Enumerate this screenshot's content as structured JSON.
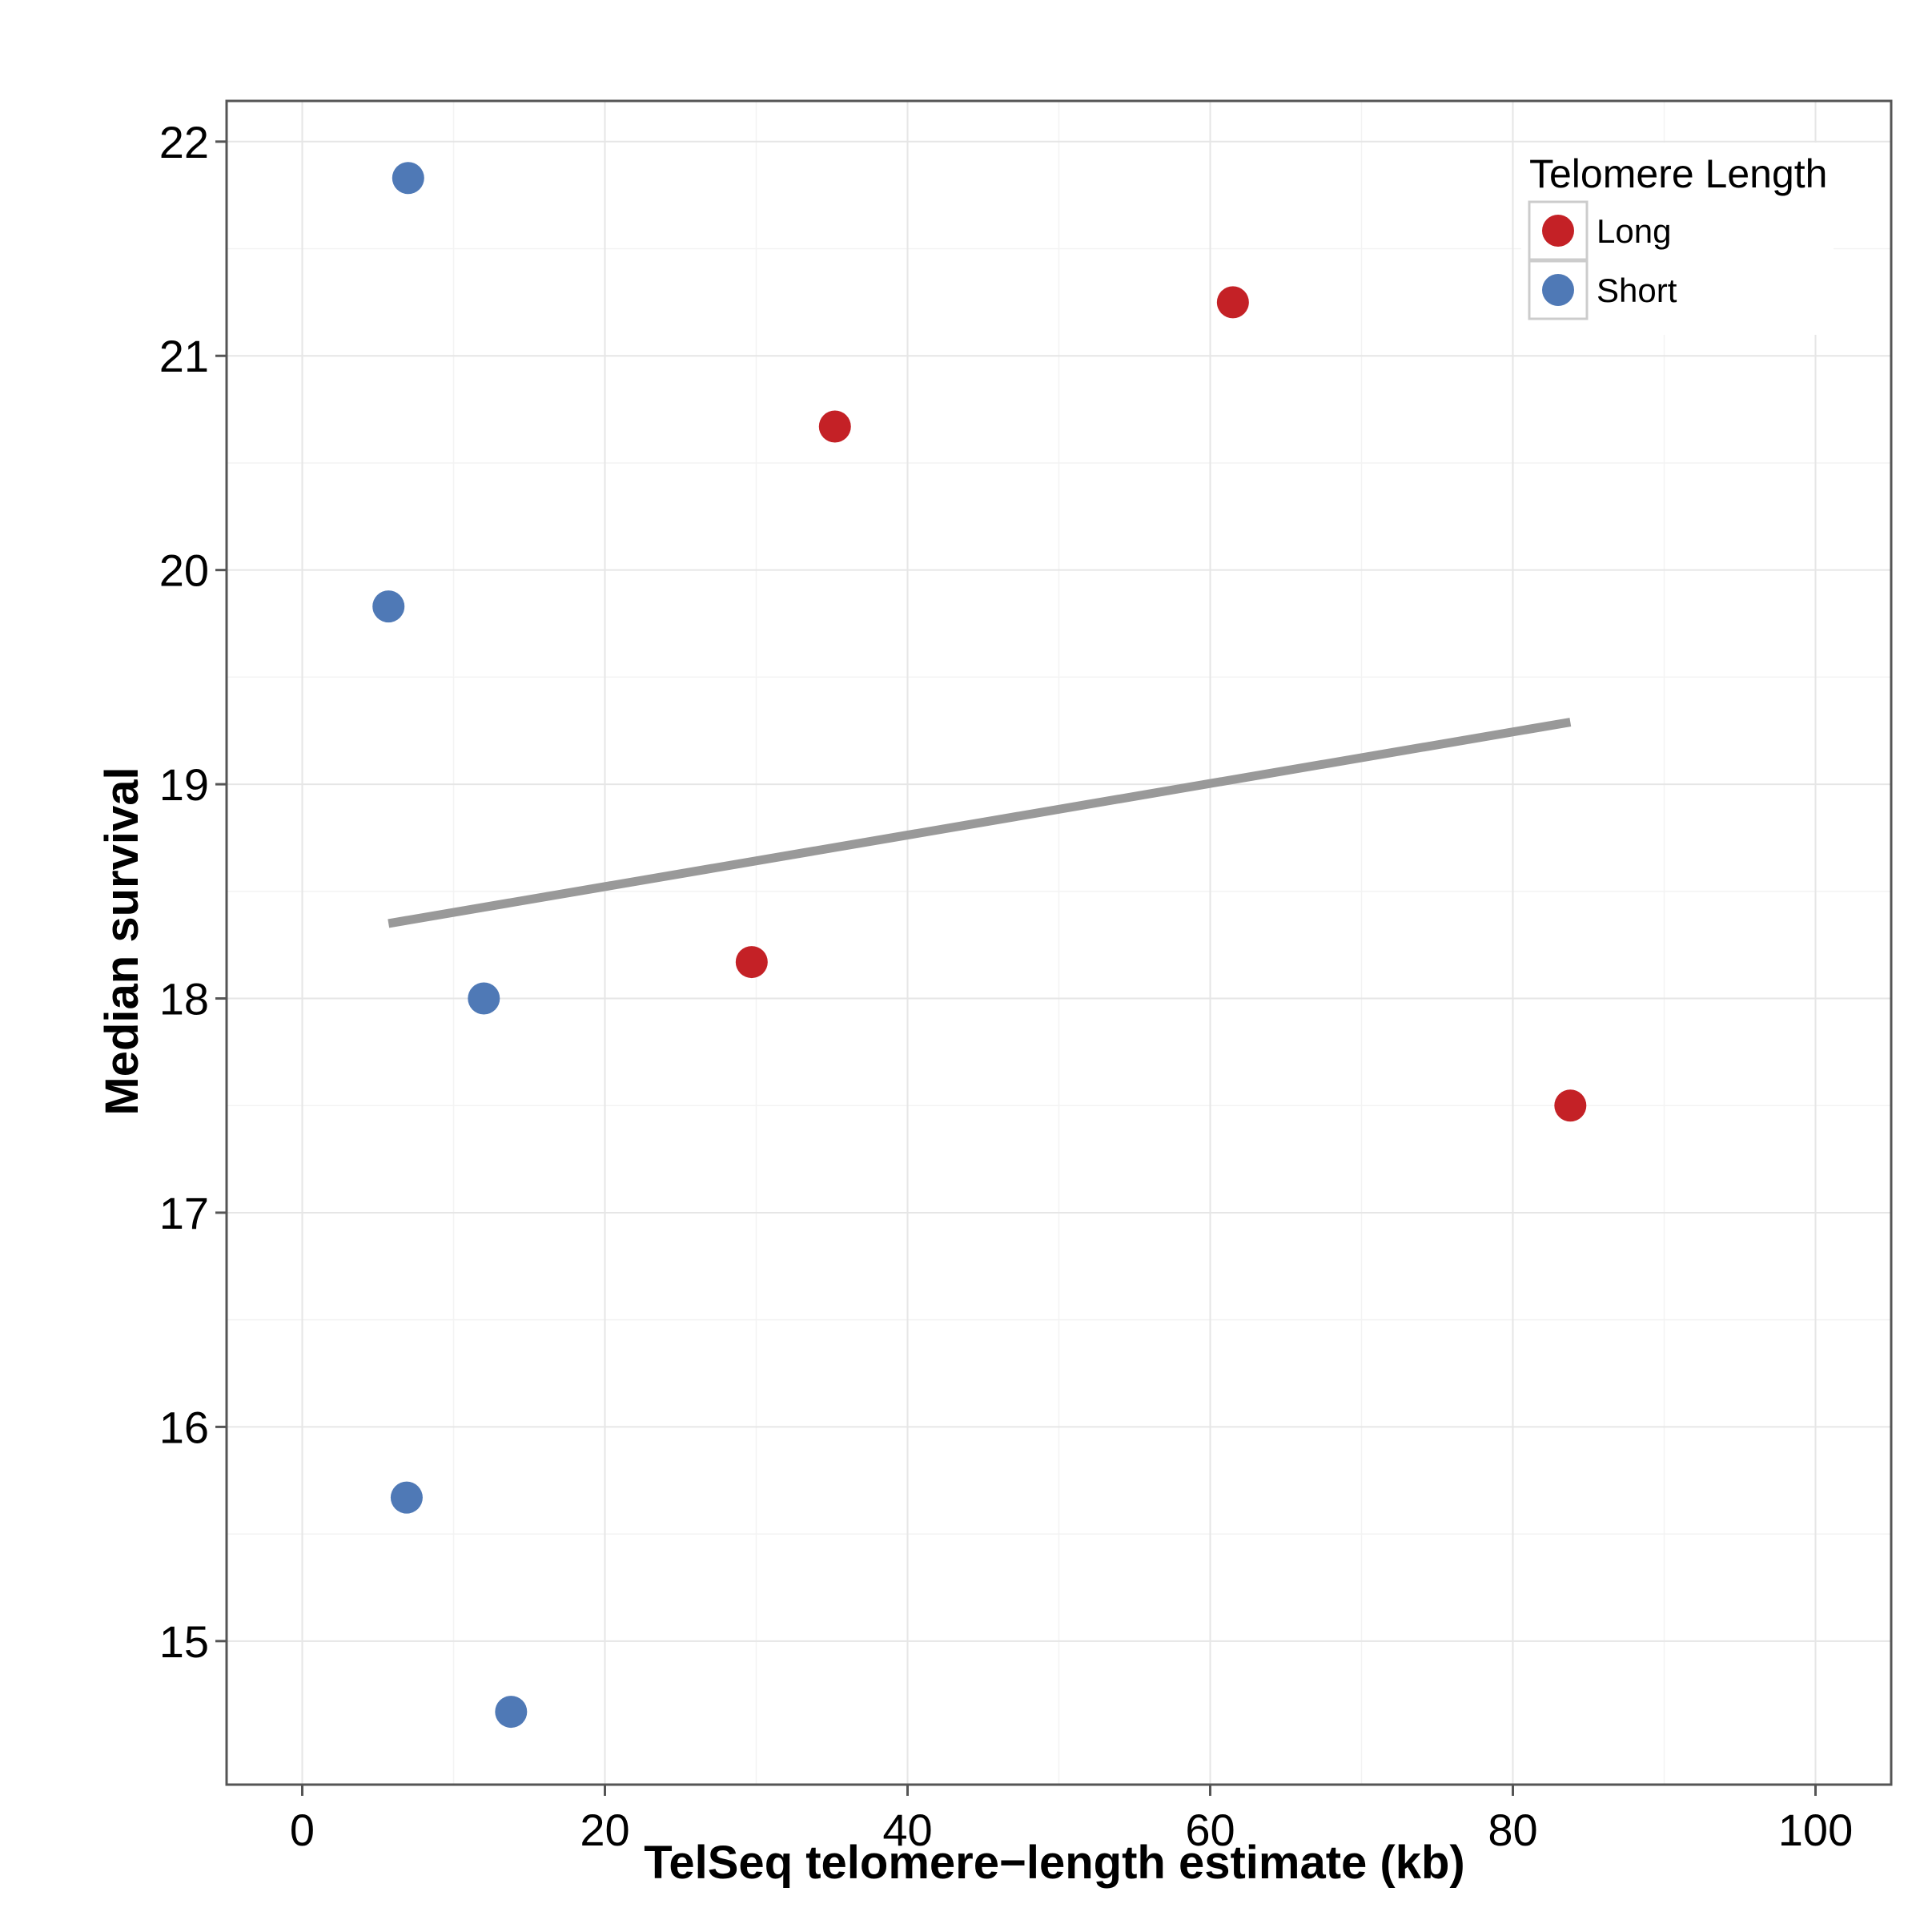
{
  "chart_data": {
    "type": "scatter",
    "title": "",
    "xlabel": "TelSeq telomere−length estimate (kb)",
    "ylabel": "Median survival",
    "xlim": [
      -5,
      105
    ],
    "ylim": [
      14.33,
      22.19
    ],
    "xticks": [
      "0",
      "20",
      "40",
      "60",
      "80",
      "100"
    ],
    "xtick_values": [
      0,
      20,
      40,
      60,
      80,
      100
    ],
    "yticks": [
      "15",
      "16",
      "17",
      "18",
      "19",
      "20",
      "21",
      "22"
    ],
    "ytick_values": [
      15,
      16,
      17,
      18,
      19,
      20,
      21,
      22
    ],
    "grid": true,
    "legend": {
      "title": "Telomere Length",
      "position": "top-right"
    },
    "series": [
      {
        "name": "Long",
        "color": "#c42126",
        "points": [
          {
            "x": 61.5,
            "y": 21.25
          },
          {
            "x": 35.2,
            "y": 20.67
          },
          {
            "x": 29.7,
            "y": 18.17
          },
          {
            "x": 83.8,
            "y": 17.5
          }
        ]
      },
      {
        "name": "Short",
        "color": "#4f79b6",
        "points": [
          {
            "x": 7.0,
            "y": 21.83
          },
          {
            "x": 5.7,
            "y": 19.83
          },
          {
            "x": 12.0,
            "y": 18.0
          },
          {
            "x": 6.9,
            "y": 15.67
          },
          {
            "x": 13.8,
            "y": 14.67
          }
        ]
      }
    ],
    "trend_line": {
      "color": "#999999",
      "x": [
        5.7,
        83.8
      ],
      "y": [
        18.35,
        19.29
      ]
    }
  }
}
